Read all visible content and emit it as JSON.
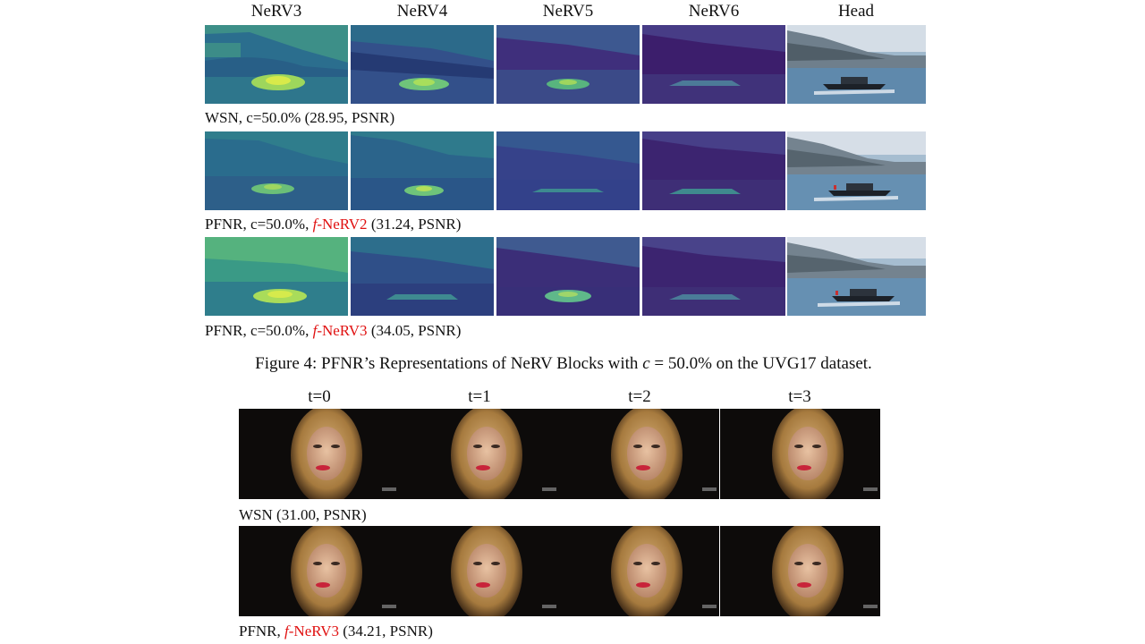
{
  "figure4": {
    "columns": [
      "NeRV3",
      "NeRV4",
      "NeRV5",
      "NeRV6",
      "Head"
    ],
    "rows": [
      {
        "prefix": "WSN, c=50.0% (28.95, PSNR)",
        "highlight_f": "",
        "highlight_model": "",
        "suffix": ""
      },
      {
        "prefix": "PFNR, c=50.0%, ",
        "highlight_f": "f",
        "highlight_model": "-NeRV2",
        "suffix": " (31.24, PSNR)"
      },
      {
        "prefix": "PFNR, c=50.0%, ",
        "highlight_f": "f",
        "highlight_model": "-NeRV3",
        "suffix": " (34.05, PSNR)"
      }
    ],
    "caption": {
      "before": "Figure 4: PFNR’s Representations of NeRV Blocks with ",
      "math_var": "c",
      "math_rest": " = 50.0%",
      "after": " on the UVG17 dataset."
    }
  },
  "figure5": {
    "columns": [
      "t=0",
      "t=1",
      "t=2",
      "t=3"
    ],
    "rows": [
      {
        "prefix": "WSN (31.00, PSNR)",
        "highlight_f": "",
        "highlight_model": "",
        "suffix": ""
      },
      {
        "prefix": "PFNR, ",
        "highlight_f": "f",
        "highlight_model": "-NeRV3",
        "suffix": " (34.21, PSNR)"
      }
    ],
    "watermark": "digiturk"
  },
  "colors": {
    "highlight": "#e01010",
    "viridis_dark": "#3b1f6e",
    "viridis_mid": "#2a6f8e",
    "viridis_bright": "#b8e05a",
    "portrait_bg": "#0d0b0a"
  }
}
